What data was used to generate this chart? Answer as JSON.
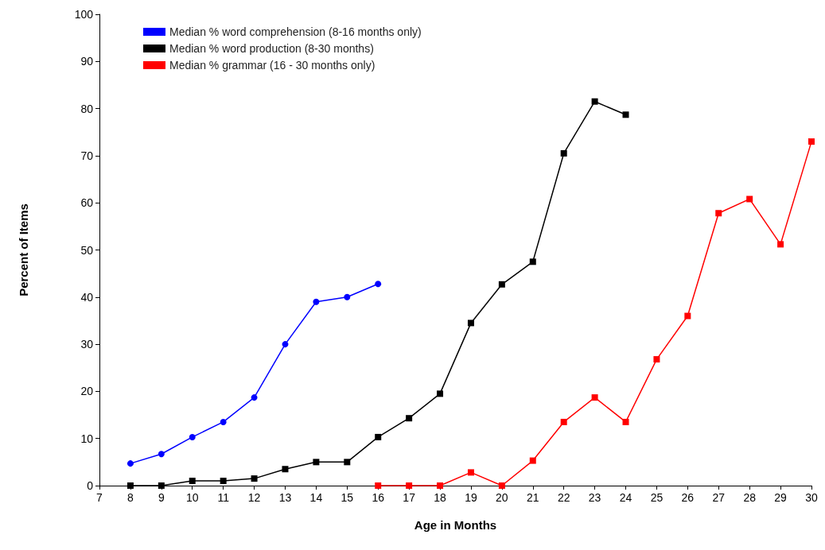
{
  "chart_data": {
    "type": "line",
    "xlabel": "Age in Months",
    "ylabel": "Percent of Items",
    "xlim": [
      7,
      30
    ],
    "xticks": [
      7,
      8,
      9,
      10,
      11,
      12,
      13,
      14,
      15,
      16,
      17,
      18,
      19,
      20,
      21,
      22,
      23,
      24,
      25,
      26,
      27,
      28,
      29,
      30
    ],
    "ylim": [
      0,
      100
    ],
    "yticks": [
      0,
      10,
      20,
      30,
      40,
      50,
      60,
      70,
      80,
      90,
      100
    ],
    "grid": false,
    "legend": "top left",
    "line_style": "solid",
    "series": [
      {
        "name": "Median % word comprehension (8-16 months only)",
        "color": "#0000ff",
        "marker": "circle",
        "x": [
          8,
          9,
          10,
          11,
          12,
          13,
          14,
          15,
          16
        ],
        "values": [
          4.7,
          6.7,
          10.3,
          13.5,
          18.7,
          30,
          39,
          40,
          42.8
        ]
      },
      {
        "name": "Median % word production (8-30 months)",
        "color": "#000000",
        "marker": "square",
        "x": [
          8,
          9,
          10,
          11,
          12,
          13,
          14,
          15,
          16,
          17,
          18,
          19,
          20,
          21,
          22,
          23,
          24
        ],
        "values": [
          0,
          0,
          1,
          1,
          1.5,
          3.5,
          5,
          5,
          10.3,
          14.3,
          19.5,
          34.5,
          42.7,
          47.5,
          70.5,
          81.5,
          78.7
        ]
      },
      {
        "name": "Median % grammar (16 - 30 months only)",
        "color": "#ff0000",
        "marker": "square",
        "x": [
          16,
          17,
          18,
          19,
          20,
          21,
          22,
          23,
          24,
          25,
          26,
          27,
          28,
          29,
          30
        ],
        "values": [
          0,
          0,
          0,
          2.8,
          0,
          5.3,
          13.5,
          18.7,
          13.5,
          26.8,
          36,
          57.8,
          60.8,
          51.2,
          73
        ]
      }
    ]
  }
}
